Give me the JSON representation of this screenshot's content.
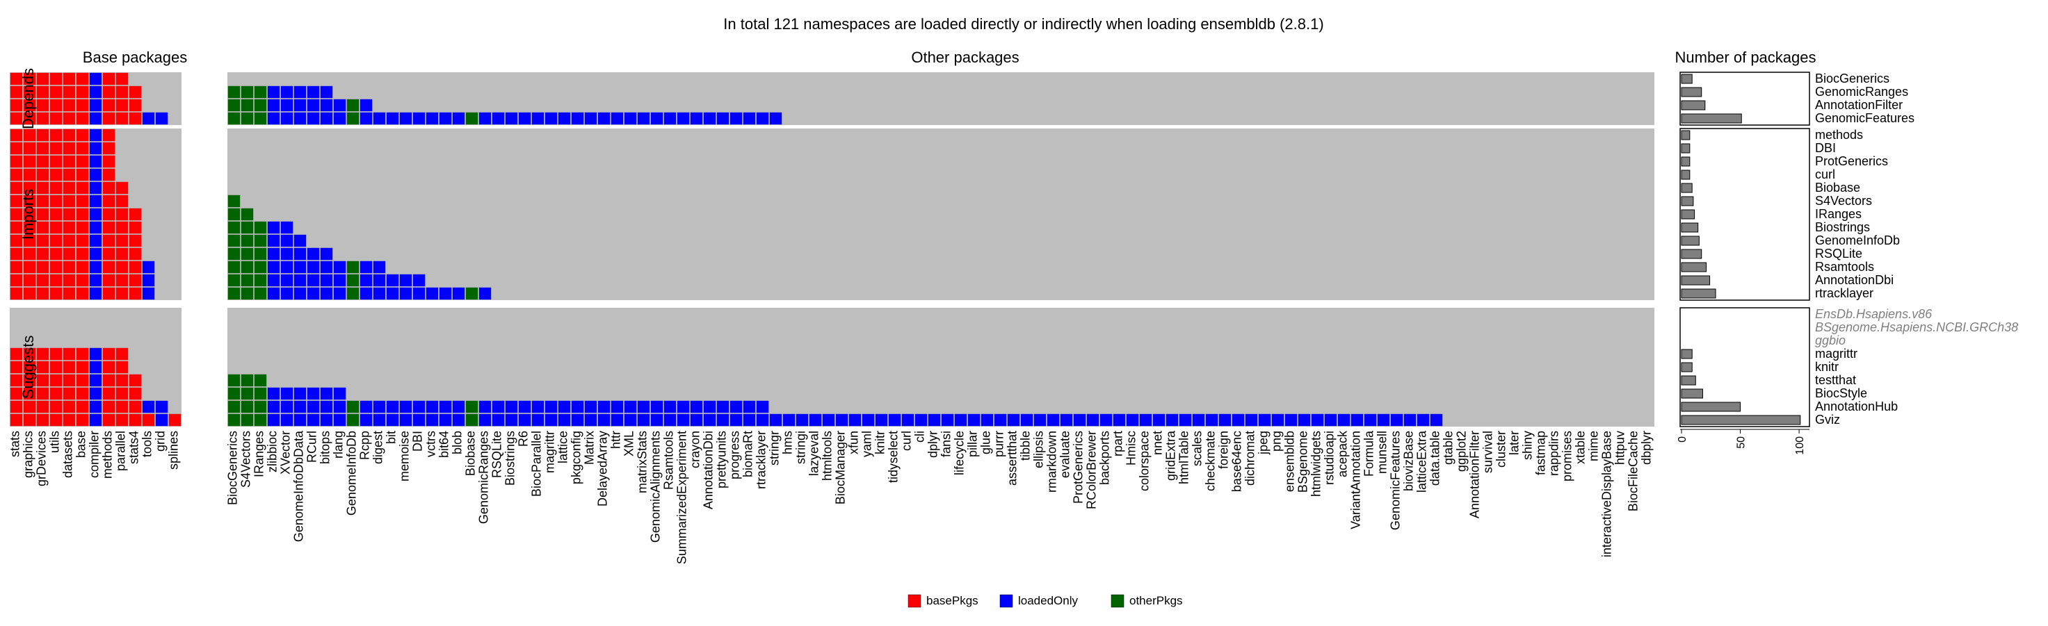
{
  "title": "In total 121 namespaces are loaded directly or indirectly when loading ensembldb (2.8.1)",
  "colors": {
    "basePkgs": "#ff0000",
    "loadedOnly": "#0000ff",
    "otherPkgs": "#006400",
    "empty": "#bebebe",
    "bar": "#7f7f7f"
  },
  "chart_data": {
    "type": "heatmap",
    "title": "In total 121 namespaces are loaded directly or indirectly when loading ensembldb (2.8.1)",
    "column_group_labels": {
      "base": "Base packages",
      "other": "Other packages",
      "count": "Number of packages"
    },
    "base_columns": [
      "stats",
      "graphics",
      "grDevices",
      "utils",
      "datasets",
      "base",
      "compiler",
      "methods",
      "parallel",
      "stats4",
      "tools",
      "grid",
      "splines"
    ],
    "other_columns": [
      "BiocGenerics",
      "S4Vectors",
      "IRanges",
      "zlibbioc",
      "XVector",
      "GenomeInfoDbData",
      "RCurl",
      "bitops",
      "rlang",
      "GenomeInfoDb",
      "Rcpp",
      "digest",
      "bit",
      "memoise",
      "DBI",
      "vctrs",
      "bit64",
      "blob",
      "Biobase",
      "GenomicRanges",
      "RSQLite",
      "Biostrings",
      "R6",
      "BiocParallel",
      "magrittr",
      "lattice",
      "pkgconfig",
      "Matrix",
      "DelayedArray",
      "httr",
      "XML",
      "matrixStats",
      "GenomicAlignments",
      "Rsamtools",
      "SummarizedExperiment",
      "crayon",
      "AnnotationDbi",
      "prettyunits",
      "progress",
      "biomaRt",
      "rtracklayer",
      "stringr",
      "hms",
      "stringi",
      "lazyeval",
      "htmltools",
      "BiocManager",
      "xfun",
      "yaml",
      "knitr",
      "tidyselect",
      "curl",
      "cli",
      "dplyr",
      "fansi",
      "lifecycle",
      "pillar",
      "glue",
      "purrr",
      "assertthat",
      "tibble",
      "ellipsis",
      "rmarkdown",
      "evaluate",
      "ProtGenerics",
      "RColorBrewer",
      "backports",
      "rpart",
      "Hmisc",
      "colorspace",
      "nnet",
      "gridExtra",
      "htmlTable",
      "scales",
      "checkmate",
      "foreign",
      "base64enc",
      "dichromat",
      "jpeg",
      "png",
      "ensembldb",
      "BSgenome",
      "htmlwidgets",
      "rstudioapi",
      "acepack",
      "VariantAnnotation",
      "Formula",
      "munsell",
      "GenomicFeatures",
      "biovizBase",
      "latticeExtra",
      "data.table",
      "gtable",
      "ggplot2",
      "AnnotationFilter",
      "survival",
      "cluster",
      "later",
      "shiny",
      "fastmap",
      "rappdirs",
      "promises",
      "xtable",
      "mime",
      "interactiveDisplayBase",
      "httpuv",
      "BiocFileCache",
      "dbplyr"
    ],
    "row_groups": [
      {
        "label": "Depends",
        "rows": [
          {
            "name": "BiocGenerics",
            "count": 9,
            "greyed": false
          },
          {
            "name": "GenomicRanges",
            "count": 17,
            "greyed": false
          },
          {
            "name": "AnnotationFilter",
            "count": 20,
            "greyed": false
          },
          {
            "name": "GenomicFeatures",
            "count": 51,
            "greyed": false
          }
        ]
      },
      {
        "label": "Imports",
        "rows": [
          {
            "name": "methods",
            "count": 7,
            "greyed": false
          },
          {
            "name": "DBI",
            "count": 7,
            "greyed": false
          },
          {
            "name": "ProtGenerics",
            "count": 7,
            "greyed": false
          },
          {
            "name": "curl",
            "count": 7,
            "greyed": false
          },
          {
            "name": "Biobase",
            "count": 9,
            "greyed": false
          },
          {
            "name": "S4Vectors",
            "count": 10,
            "greyed": false
          },
          {
            "name": "IRanges",
            "count": 11,
            "greyed": false
          },
          {
            "name": "Biostrings",
            "count": 14,
            "greyed": false
          },
          {
            "name": "GenomeInfoDb",
            "count": 15,
            "greyed": false
          },
          {
            "name": "RSQLite",
            "count": 17,
            "greyed": false
          },
          {
            "name": "Rsamtools",
            "count": 21,
            "greyed": false
          },
          {
            "name": "AnnotationDbi",
            "count": 24,
            "greyed": false
          },
          {
            "name": "rtracklayer",
            "count": 29,
            "greyed": false
          }
        ]
      },
      {
        "label": "Suggests",
        "rows": [
          {
            "name": "EnsDb.Hsapiens.v86",
            "count": 0,
            "greyed": true
          },
          {
            "name": "BSgenome.Hsapiens.NCBI.GRCh38",
            "count": 0,
            "greyed": true
          },
          {
            "name": "ggbio",
            "count": 0,
            "greyed": true
          },
          {
            "name": "magrittr",
            "count": 9,
            "greyed": false
          },
          {
            "name": "knitr",
            "count": 9,
            "greyed": false
          },
          {
            "name": "testthat",
            "count": 12,
            "greyed": false
          },
          {
            "name": "BiocStyle",
            "count": 18,
            "greyed": false
          },
          {
            "name": "AnnotationHub",
            "count": 50,
            "greyed": false
          },
          {
            "name": "Gviz",
            "count": 101,
            "greyed": false
          }
        ]
      }
    ],
    "bar_axis": {
      "ticks": [
        0,
        50,
        100
      ],
      "xlim": [
        0,
        110
      ]
    },
    "legend": {
      "position": "bottom",
      "entries": [
        "basePkgs",
        "loadedOnly",
        "otherPkgs"
      ]
    }
  }
}
